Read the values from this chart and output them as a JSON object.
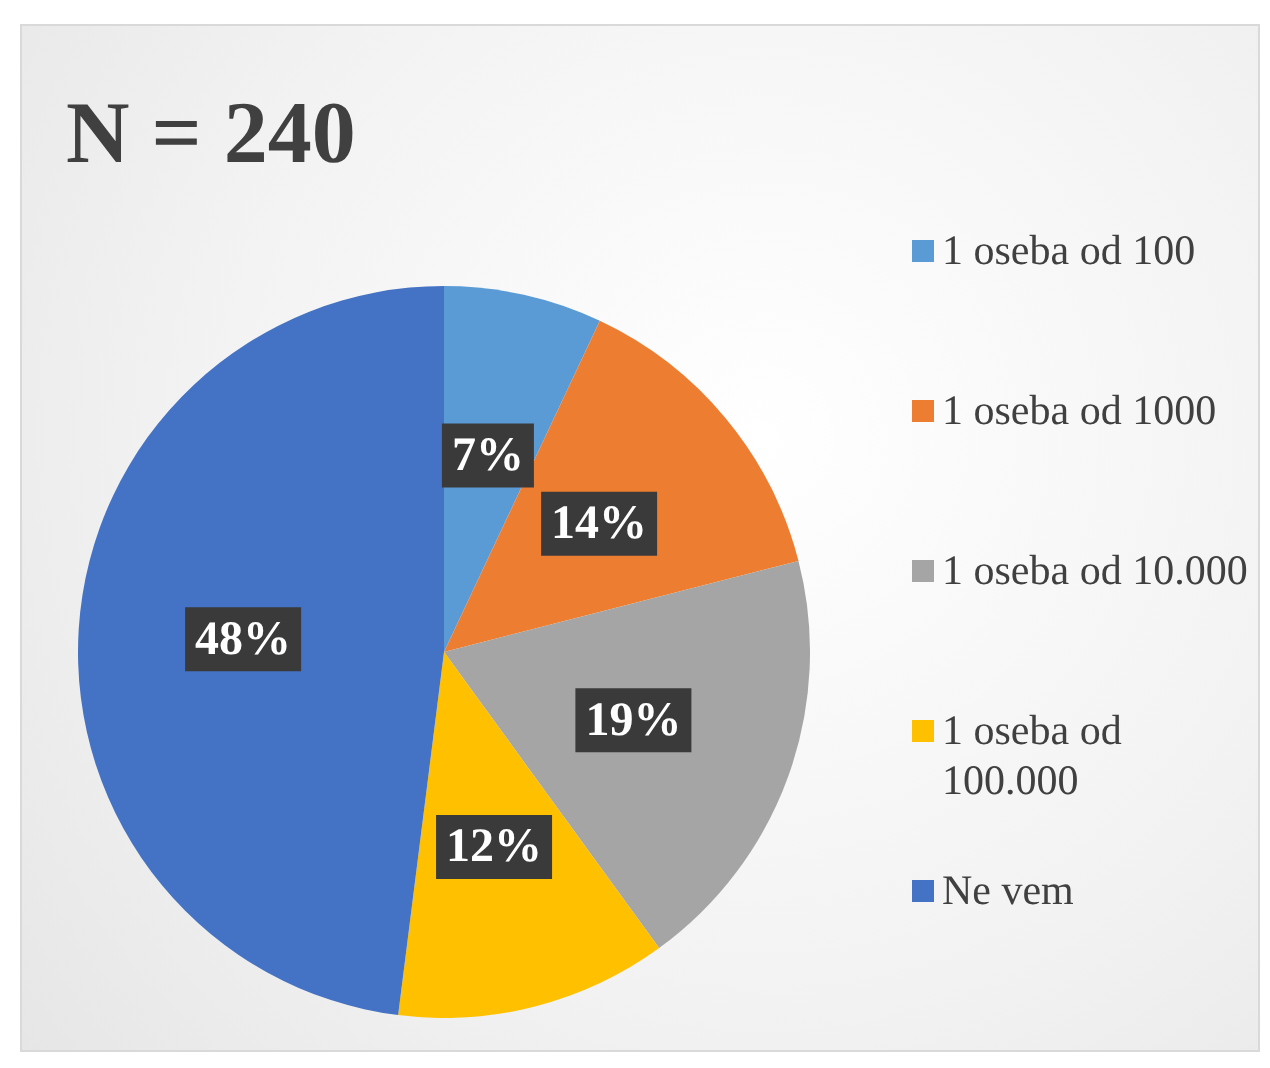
{
  "chart_data": {
    "type": "pie",
    "title": "N = 240",
    "categories": [
      "1 oseba od 100",
      "1 oseba od 1000",
      "1 oseba od 10.000",
      "1 oseba od 100.000",
      "Ne vem"
    ],
    "values": [
      7,
      14,
      19,
      12,
      48
    ],
    "value_labels": [
      "7%",
      "14%",
      "19%",
      "12%",
      "48%"
    ],
    "colors": [
      "#5b9bd5",
      "#ed7d31",
      "#a5a5a5",
      "#ffc000",
      "#4472c4"
    ],
    "legend": "right"
  }
}
